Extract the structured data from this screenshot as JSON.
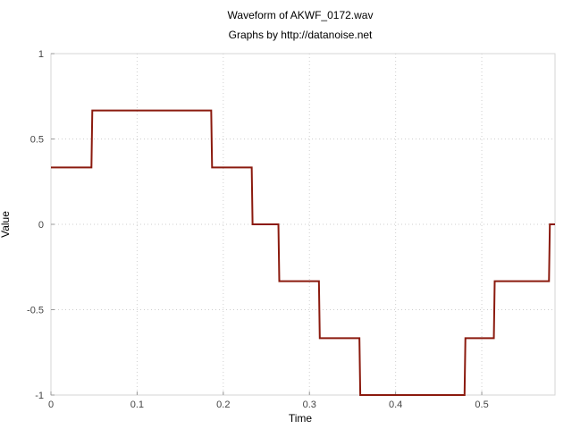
{
  "chart_data": {
    "type": "line",
    "title": "Waveform of AKWF_0172.wav",
    "subtitle": "Graphs by http://datanoise.net",
    "xlabel": "Time",
    "ylabel": "Value",
    "xlim": [
      0,
      0.585
    ],
    "ylim": [
      -1,
      1
    ],
    "grid": true,
    "x_ticks": [
      {
        "value": 0,
        "label": "0"
      },
      {
        "value": 0.1,
        "label": "0.1"
      },
      {
        "value": 0.2,
        "label": "0.2"
      },
      {
        "value": 0.3,
        "label": "0.3"
      },
      {
        "value": 0.4,
        "label": "0.4"
      },
      {
        "value": 0.5,
        "label": "0.5"
      }
    ],
    "y_ticks": [
      {
        "value": 1,
        "label": "1"
      },
      {
        "value": 0.5,
        "label": "0.5"
      },
      {
        "value": 0,
        "label": "0"
      },
      {
        "value": -0.5,
        "label": "-0.5"
      },
      {
        "value": -1,
        "label": "-1"
      }
    ],
    "series": [
      {
        "color": "#8b1a0e",
        "x": [
          0,
          0.047,
          0.048,
          0.186,
          0.187,
          0.233,
          0.234,
          0.264,
          0.265,
          0.311,
          0.312,
          0.358,
          0.359,
          0.48,
          0.481,
          0.514,
          0.515,
          0.578,
          0.579,
          0.585
        ],
        "y": [
          0.333,
          0.333,
          0.667,
          0.667,
          0.333,
          0.333,
          0,
          0,
          -0.333,
          -0.333,
          -0.667,
          -0.667,
          -1,
          -1,
          -0.667,
          -0.667,
          -0.333,
          -0.333,
          0,
          0
        ]
      }
    ]
  }
}
